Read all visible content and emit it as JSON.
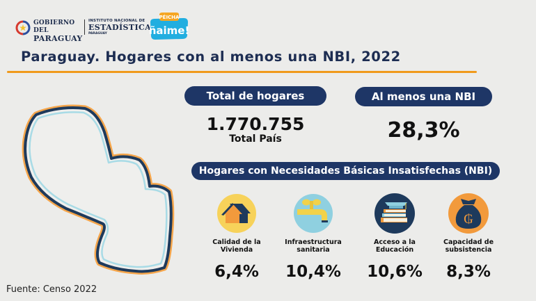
{
  "header": {
    "gobierno_line1": "GOBIERNO DEL",
    "gobierno_line2": "PARAGUAY",
    "ine_line1": "INSTITUTO NACIONAL DE",
    "ine_line2": "ESTADÍSTICA",
    "ine_line3": "PARAGUAY",
    "campaign_small": "PÉICHA",
    "campaign_big": "ñaime!"
  },
  "title": "Paraguay. Hogares con al menos una NBI, 2022",
  "summary": {
    "total_label": "Total de hogares",
    "total_value": "1.770.755",
    "total_sub": "Total País",
    "nbi_label": "Al menos una NBI",
    "nbi_value": "28,3%"
  },
  "section_label": "Hogares con Necesidades Básicas Insatisfechas (NBI)",
  "indicators": [
    {
      "icon": "house-icon",
      "label_line1": "Calidad de la",
      "label_line2": "Vivienda",
      "value": "6,4%",
      "color": "#f7d25a"
    },
    {
      "icon": "faucet-icon",
      "label_line1": "Infraestructura",
      "label_line2": "sanitaria",
      "value": "10,4%",
      "color": "#8fd0e0"
    },
    {
      "icon": "books-icon",
      "label_line1": "Acceso a la",
      "label_line2": "Educación",
      "value": "10,6%",
      "color": "#1e3a5c"
    },
    {
      "icon": "money-bag-icon",
      "label_line1": "Capacidad de",
      "label_line2": "subsistencia",
      "value": "8,3%",
      "color": "#f29a3c"
    }
  ],
  "source": "Fuente: Censo 2022",
  "colors": {
    "navy": "#1e3666",
    "orange": "#f09a1c",
    "light_blue": "#a8dbe6",
    "background": "#ececea"
  }
}
